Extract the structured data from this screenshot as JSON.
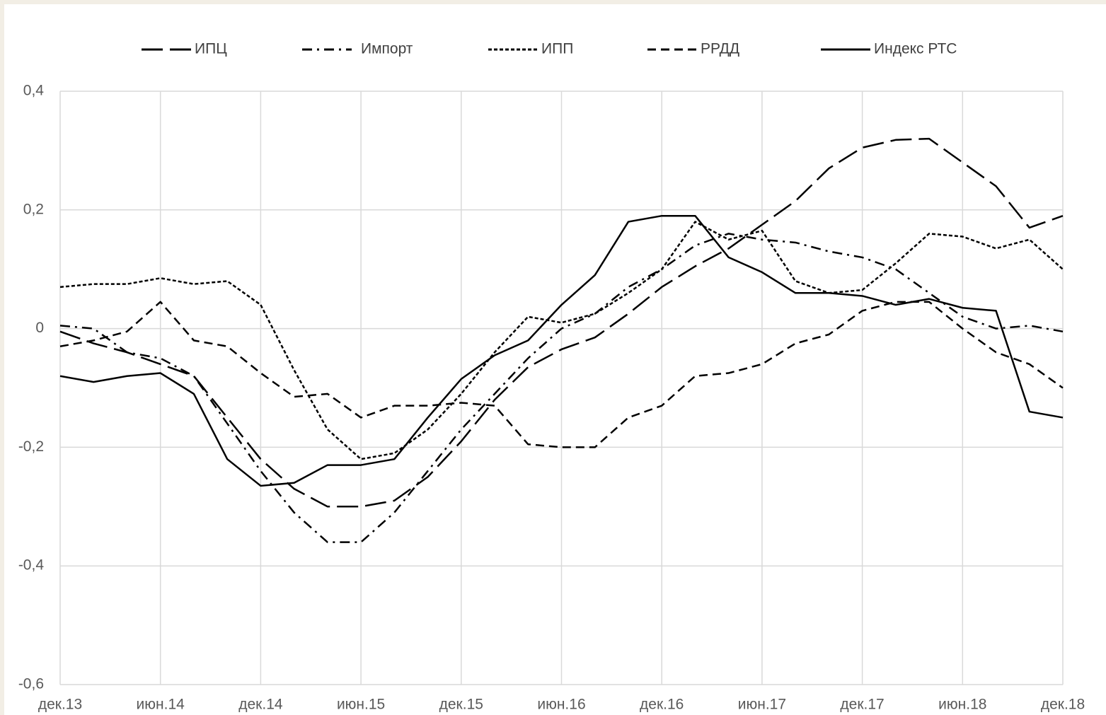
{
  "chart_data": {
    "type": "line",
    "categories": [
      "дек.13",
      null,
      null,
      "июн.14",
      null,
      null,
      "дек.14",
      null,
      null,
      "июн.15",
      null,
      null,
      "дек.15",
      null,
      null,
      "июн.16",
      null,
      null,
      "дек.16",
      null,
      null,
      "июн.17",
      null,
      null,
      "дек.17",
      null,
      null,
      "июн.18",
      null,
      null,
      "дек.18"
    ],
    "series": [
      {
        "name": "ИПЦ",
        "color": "#000000",
        "dash": "long-dash",
        "values": [
          -0.005,
          -0.025,
          -0.04,
          -0.06,
          -0.08,
          -0.15,
          -0.22,
          -0.27,
          -0.3,
          -0.3,
          -0.29,
          -0.25,
          -0.19,
          -0.12,
          -0.065,
          -0.035,
          -0.015,
          0.025,
          0.07,
          0.105,
          0.135,
          0.175,
          0.215,
          0.27,
          0.305,
          0.318,
          0.32,
          0.28,
          0.24,
          0.17,
          0.19
        ]
      },
      {
        "name": "Импорт",
        "color": "#000000",
        "dash": "dash-dot",
        "values": [
          0.005,
          0.0,
          -0.04,
          -0.05,
          -0.08,
          -0.16,
          -0.24,
          -0.31,
          -0.36,
          -0.36,
          -0.31,
          -0.24,
          -0.17,
          -0.11,
          -0.05,
          0.0,
          0.025,
          0.07,
          0.1,
          0.14,
          0.16,
          0.15,
          0.145,
          0.13,
          0.12,
          0.1,
          0.06,
          0.02,
          0.0,
          0.005,
          -0.005
        ]
      },
      {
        "name": "ИПП",
        "color": "#000000",
        "dash": "dot",
        "values": [
          0.07,
          0.075,
          0.075,
          0.085,
          0.075,
          0.08,
          0.04,
          -0.07,
          -0.17,
          -0.22,
          -0.21,
          -0.17,
          -0.11,
          -0.04,
          0.02,
          0.01,
          0.025,
          0.06,
          0.1,
          0.18,
          0.15,
          0.165,
          0.08,
          0.06,
          0.065,
          0.11,
          0.16,
          0.155,
          0.135,
          0.15,
          0.1
        ]
      },
      {
        "name": "РРДД",
        "color": "#000000",
        "dash": "dash",
        "values": [
          -0.03,
          -0.02,
          -0.005,
          0.045,
          -0.02,
          -0.03,
          -0.075,
          -0.115,
          -0.11,
          -0.15,
          -0.13,
          -0.13,
          -0.125,
          -0.13,
          -0.195,
          -0.2,
          -0.2,
          -0.15,
          -0.13,
          -0.08,
          -0.075,
          -0.06,
          -0.025,
          -0.01,
          0.03,
          0.045,
          0.045,
          0.0,
          -0.04,
          -0.06,
          -0.1
        ]
      },
      {
        "name": "Индекс РТС",
        "color": "#000000",
        "dash": "solid",
        "values": [
          -0.08,
          -0.09,
          -0.08,
          -0.075,
          -0.11,
          -0.22,
          -0.265,
          -0.26,
          -0.23,
          -0.23,
          -0.22,
          -0.15,
          -0.085,
          -0.045,
          -0.02,
          0.04,
          0.09,
          0.18,
          0.19,
          0.19,
          0.12,
          0.095,
          0.06,
          0.06,
          0.055,
          0.04,
          0.05,
          0.035,
          0.03,
          -0.14,
          -0.15
        ]
      }
    ],
    "ylim": [
      -0.6,
      0.4
    ],
    "yticks": [
      {
        "value": -0.6,
        "label": "-0,6"
      },
      {
        "value": -0.4,
        "label": "-0,4"
      },
      {
        "value": -0.2,
        "label": "-0,2"
      },
      0,
      {
        "value": 0.2,
        "label": "0,2"
      },
      {
        "value": 0.4,
        "label": "0,4"
      }
    ],
    "grid": true,
    "legend": "top"
  }
}
